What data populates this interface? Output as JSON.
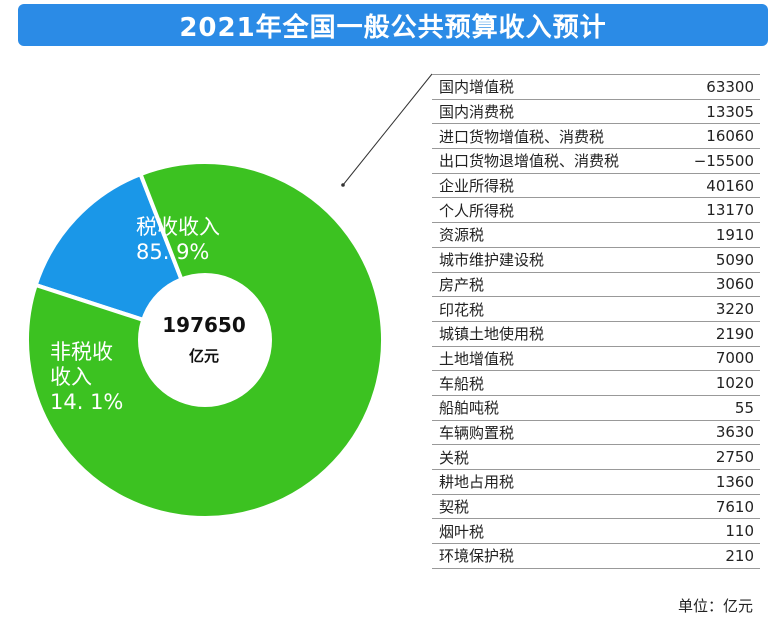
{
  "title": "2021年全国一般公共预算收入预计",
  "center": {
    "value": "197650",
    "unit": "亿元"
  },
  "chart_data": {
    "type": "pie",
    "total": 197650,
    "slices": [
      {
        "label": "税收收入",
        "percent": 85.9,
        "percent_text": "85. 9%",
        "color": "#3cc221"
      },
      {
        "label": "非税收收入",
        "label_lines": [
          "非税收",
          "收入"
        ],
        "percent": 14.1,
        "percent_text": "14. 1%",
        "color": "#1a97e8"
      }
    ],
    "table": {
      "unit": "单位：亿元",
      "rows": [
        {
          "name": "国内增值税",
          "value": "63300"
        },
        {
          "name": "国内消费税",
          "value": "13305"
        },
        {
          "name": "进口货物增值税、消费税",
          "value": "16060"
        },
        {
          "name": "出口货物退增值税、消费税",
          "value": "−15500"
        },
        {
          "name": "企业所得税",
          "value": "40160"
        },
        {
          "name": "个人所得税",
          "value": "13170"
        },
        {
          "name": "资源税",
          "value": "1910"
        },
        {
          "name": "城市维护建设税",
          "value": "5090"
        },
        {
          "name": "房产税",
          "value": "3060"
        },
        {
          "name": "印花税",
          "value": "3220"
        },
        {
          "name": "城镇土地使用税",
          "value": "2190"
        },
        {
          "name": "土地增值税",
          "value": "7000"
        },
        {
          "name": "车船税",
          "value": "1020"
        },
        {
          "name": "船舶吨税",
          "value": "55"
        },
        {
          "name": "车辆购置税",
          "value": "3630"
        },
        {
          "name": "关税",
          "value": "2750"
        },
        {
          "name": "耕地占用税",
          "value": "1360"
        },
        {
          "name": "契税",
          "value": "7610"
        },
        {
          "name": "烟叶税",
          "value": "110"
        },
        {
          "name": "环境保护税",
          "value": "210"
        }
      ]
    }
  }
}
